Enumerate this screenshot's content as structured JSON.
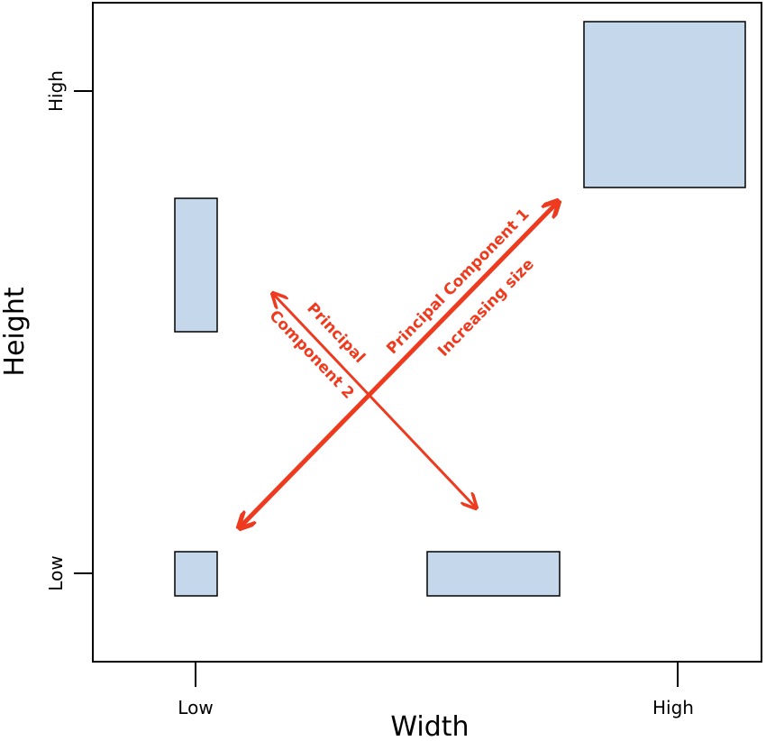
{
  "axes": {
    "x_title": "Width",
    "y_title": "Height",
    "x_ticks": [
      "Low",
      "High"
    ],
    "y_ticks": [
      "Low",
      "High"
    ]
  },
  "shapes": [
    {
      "name": "low-width-low-height",
      "width": "Low",
      "height": "Low"
    },
    {
      "name": "high-width-low-height",
      "width": "High",
      "height": "Low"
    },
    {
      "name": "low-width-high-height",
      "width": "Low",
      "height": "High"
    },
    {
      "name": "high-width-high-height",
      "width": "High",
      "height": "High"
    }
  ],
  "arrows": {
    "pc1_label": "Principal Component 1",
    "pc1_sublabel": "Increasing size",
    "pc2_label_line1": "Principal",
    "pc2_label_line2": "Component 2"
  },
  "colors": {
    "shape_fill": "#c5d7eb",
    "shape_stroke": "#000000",
    "arrow": "#ee3a1e",
    "axis": "#000000"
  }
}
